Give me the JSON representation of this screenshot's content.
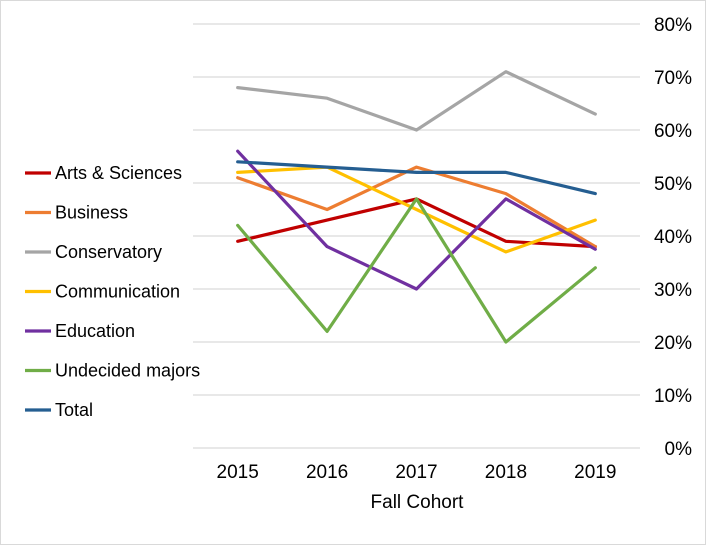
{
  "chart_data": {
    "type": "line",
    "title": "",
    "xlabel": "Fall Cohort",
    "ylabel": "",
    "categories": [
      "2015",
      "2016",
      "2017",
      "2018",
      "2019"
    ],
    "ylim": [
      0,
      80
    ],
    "y_ticks": [
      "0%",
      "10%",
      "20%",
      "30%",
      "40%",
      "50%",
      "60%",
      "70%",
      "80%"
    ],
    "y_axis_side": "right",
    "grid": true,
    "legend_position": "left",
    "series": [
      {
        "name": "Arts & Sciences",
        "color": "#c00000",
        "values": [
          39,
          43,
          47,
          39,
          38
        ]
      },
      {
        "name": "Business",
        "color": "#ed7d31",
        "values": [
          51,
          45,
          53,
          48,
          38
        ]
      },
      {
        "name": "Conservatory",
        "color": "#a5a5a5",
        "values": [
          68,
          66,
          60,
          71,
          63
        ]
      },
      {
        "name": "Communication",
        "color": "#ffc000",
        "values": [
          52,
          53,
          45,
          37,
          43
        ]
      },
      {
        "name": "Education",
        "color": "#7030a0",
        "values": [
          56,
          38,
          30,
          47,
          37.5
        ]
      },
      {
        "name": "Undecided majors",
        "color": "#70ad47",
        "values": [
          42,
          22,
          47,
          20,
          34
        ]
      },
      {
        "name": "Total",
        "color": "#255e91",
        "values": [
          54,
          53,
          52,
          52,
          48
        ]
      }
    ]
  }
}
